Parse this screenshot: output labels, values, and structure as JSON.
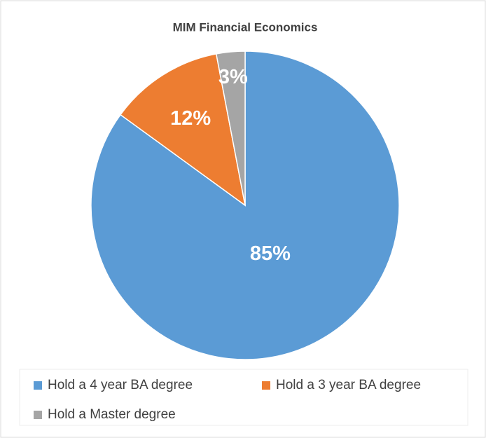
{
  "chart_data": {
    "type": "pie",
    "title": "MIM Financial Economics",
    "categories": [
      "Hold a 4 year BA degree",
      "Hold a 3 year BA degree",
      "Hold a Master degree"
    ],
    "values": [
      85,
      12,
      3
    ],
    "value_labels": [
      "85%",
      "12%",
      "3%"
    ],
    "colors": [
      "#5b9bd5",
      "#ed7d31",
      "#a5a5a5"
    ],
    "legend": "bottom"
  }
}
